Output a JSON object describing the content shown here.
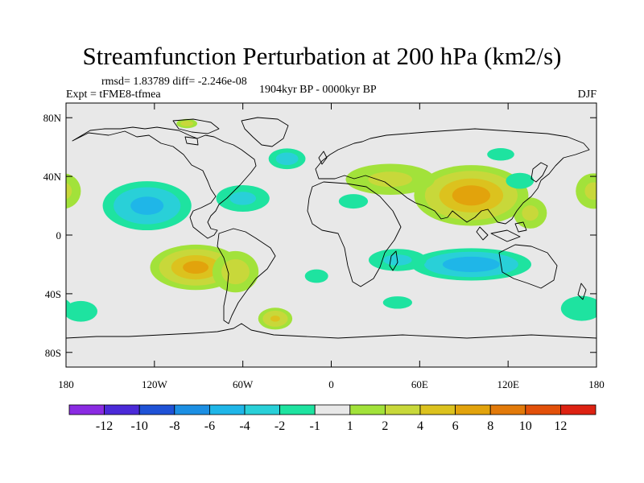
{
  "title": "Streamfunction Perturbation at 200 hPa (km2/s)",
  "stats": "rmsd= 1.83789 diff= -2.246e-08",
  "experiment": "Expt = tFME8-tfmea",
  "period": "1904kyr BP - 0000kyr BP",
  "season": "DJF",
  "y_ticks": [
    {
      "label": "80N",
      "lat": 80
    },
    {
      "label": "40N",
      "lat": 40
    },
    {
      "label": "0",
      "lat": 0
    },
    {
      "label": "40S",
      "lat": -40
    },
    {
      "label": "80S",
      "lat": -80
    }
  ],
  "x_ticks": [
    {
      "label": "180",
      "lon": -180
    },
    {
      "label": "120W",
      "lon": -120
    },
    {
      "label": "60W",
      "lon": -60
    },
    {
      "label": "0",
      "lon": 0
    },
    {
      "label": "60E",
      "lon": 60
    },
    {
      "label": "120E",
      "lon": 120
    },
    {
      "label": "180",
      "lon": 180
    }
  ],
  "colorbar": {
    "colors": [
      "#8a2be2",
      "#4b2ad8",
      "#1f52d6",
      "#1c8fe3",
      "#1fb6e8",
      "#29d0d8",
      "#1ee3a0",
      "#e8e8e8",
      "#a2e23a",
      "#c8d83a",
      "#dcc21e",
      "#e2a30c",
      "#e27a0a",
      "#e2500a",
      "#dd2212"
    ],
    "labels": [
      "-12",
      "-10",
      "-8",
      "-6",
      "-4",
      "-2",
      "-1",
      "1",
      "2",
      "4",
      "6",
      "8",
      "10",
      "12"
    ]
  },
  "contour_levels": [
    {
      "level": 1,
      "color": "#a2e23a"
    },
    {
      "level": 2,
      "color": "#c8d83a"
    },
    {
      "level": 4,
      "color": "#dcc21e"
    },
    {
      "level": 6,
      "color": "#e2a30c"
    },
    {
      "level": -1,
      "color": "#1ee3a0"
    },
    {
      "level": -2,
      "color": "#29d0d8"
    },
    {
      "level": -4,
      "color": "#1fb6e8"
    }
  ],
  "field_blobs": [
    {
      "lon": 95,
      "lat": 27,
      "rlon": 45,
      "rlat": 24,
      "amp": 7.5
    },
    {
      "lon": 40,
      "lat": 38,
      "rlon": 40,
      "rlat": 14,
      "amp": 2.5
    },
    {
      "lon": -92,
      "lat": -22,
      "rlon": 36,
      "rlat": 18,
      "amp": 7.0
    },
    {
      "lon": -65,
      "lat": -25,
      "rlon": 20,
      "rlat": 18,
      "amp": 3.0
    },
    {
      "lon": -38,
      "lat": -57,
      "rlon": 14,
      "rlat": 9,
      "amp": 4.5
    },
    {
      "lon": 178,
      "lat": 30,
      "rlon": 16,
      "rlat": 16,
      "amp": 2.5
    },
    {
      "lon": 135,
      "lat": 15,
      "rlon": 15,
      "rlat": 14,
      "amp": 2.5
    },
    {
      "lon": -125,
      "lat": 20,
      "rlon": 36,
      "rlat": 20,
      "amp": -5.0
    },
    {
      "lon": -60,
      "lat": 25,
      "rlon": 24,
      "rlat": 12,
      "amp": -2.5
    },
    {
      "lon": -30,
      "lat": 52,
      "rlon": 16,
      "rlat": 9,
      "amp": -3.0
    },
    {
      "lon": 15,
      "lat": 23,
      "rlon": 14,
      "rlat": 7,
      "amp": -2.0
    },
    {
      "lon": 95,
      "lat": -20,
      "rlon": 48,
      "rlat": 13,
      "amp": -6.0
    },
    {
      "lon": 45,
      "lat": -17,
      "rlon": 26,
      "rlat": 10,
      "amp": -2.5
    },
    {
      "lon": 170,
      "lat": -50,
      "rlon": 20,
      "rlat": 12,
      "amp": -2.0
    },
    {
      "lon": -170,
      "lat": -52,
      "rlon": 16,
      "rlat": 10,
      "amp": -2.0
    },
    {
      "lon": 45,
      "lat": -46,
      "rlon": 14,
      "rlat": 6,
      "amp": -2.0
    },
    {
      "lon": 115,
      "lat": 55,
      "rlon": 13,
      "rlat": 6,
      "amp": -2.0
    },
    {
      "lon": 128,
      "lat": 37,
      "rlon": 14,
      "rlat": 8,
      "amp": -1.8
    },
    {
      "lon": -10,
      "lat": -28,
      "rlon": 12,
      "rlat": 7,
      "amp": -1.7
    },
    {
      "lon": -98,
      "lat": 76,
      "rlon": 9,
      "rlat": 4,
      "amp": 3.0
    }
  ]
}
